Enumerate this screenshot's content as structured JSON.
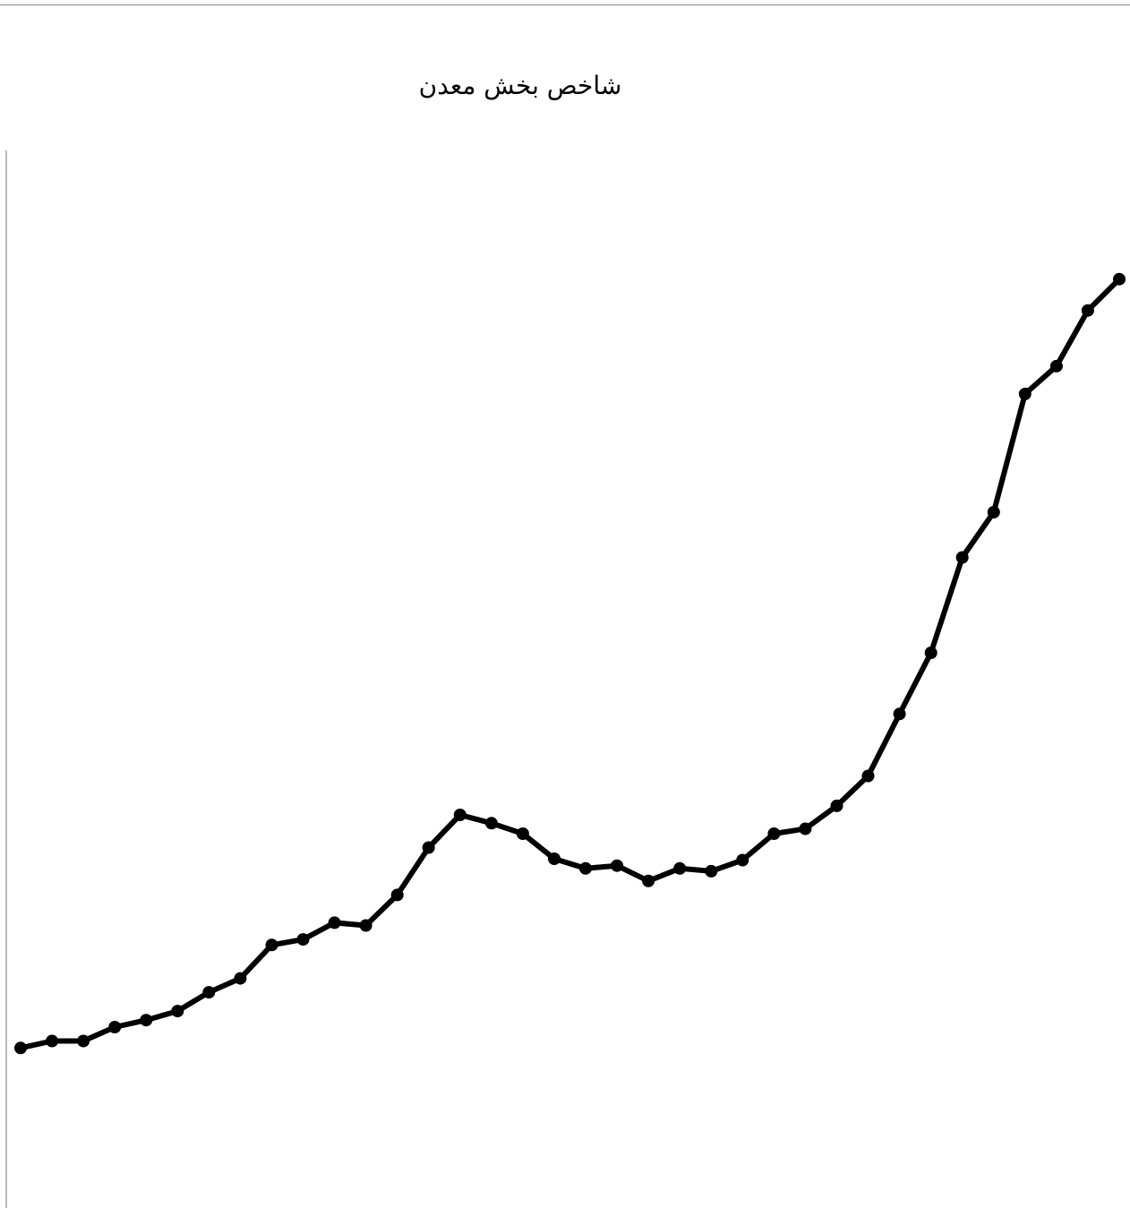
{
  "chart_data": {
    "type": "line",
    "title": "شاخص بخش معدن",
    "xlabel": "",
    "ylabel": "",
    "x": [
      1,
      2,
      3,
      4,
      5,
      6,
      7,
      8,
      9,
      10,
      11,
      12,
      13,
      14,
      15,
      16,
      17,
      18,
      19,
      20,
      21,
      22,
      23,
      24,
      25,
      26,
      27,
      28,
      29,
      30,
      31,
      32,
      33,
      34,
      35,
      36
    ],
    "series": [
      {
        "values": [
          51,
          52,
          52,
          54,
          55,
          56.3,
          59,
          61,
          65.8,
          66.6,
          69,
          68.6,
          73,
          79.8,
          84.5,
          83.3,
          81.8,
          78.2,
          76.8,
          77.2,
          75,
          76.8,
          76.4,
          78,
          81.8,
          82.5,
          85.8,
          90.1,
          99,
          107.8,
          121.5,
          128,
          145,
          149,
          157,
          161.5
        ]
      }
    ],
    "ylim": [
      28,
      180
    ],
    "grid": false,
    "legend": "none",
    "line_color": "#000000",
    "marker": "circle"
  }
}
